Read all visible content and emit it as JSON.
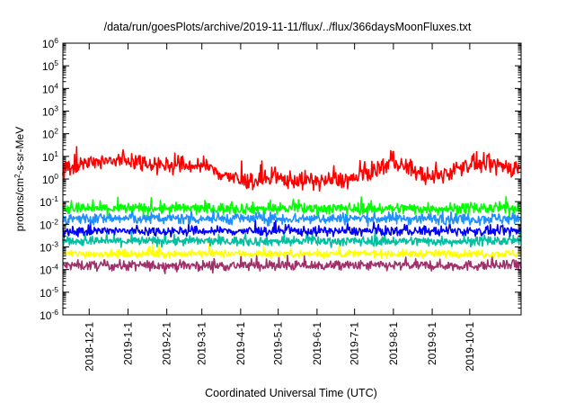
{
  "chart_data": {
    "type": "line",
    "title": "/data/run/goesPlots/archive/2019-11-11/flux/../flux/366daysMoonFluxes.txt",
    "xlabel": "Coordinated Universal Time (UTC)",
    "ylabel": {
      "base": "protons/cm",
      "sup": "2",
      "rest": "-s-sr-MeV"
    },
    "y_scale": "log",
    "ylim": [
      1e-06,
      1000000.0
    ],
    "y_ticks": [
      {
        "base": "10",
        "exp": "-6",
        "value": 1e-06
      },
      {
        "base": "10",
        "exp": "-5",
        "value": 1e-05
      },
      {
        "base": "10",
        "exp": "-4",
        "value": 0.0001
      },
      {
        "base": "10",
        "exp": "-3",
        "value": 0.001
      },
      {
        "base": "10",
        "exp": "-2",
        "value": 0.01
      },
      {
        "base": "10",
        "exp": "-1",
        "value": 0.1
      },
      {
        "base": "10",
        "exp": "0",
        "value": 1
      },
      {
        "base": "10",
        "exp": "1",
        "value": 10
      },
      {
        "base": "10",
        "exp": "2",
        "value": 100
      },
      {
        "base": "10",
        "exp": "3",
        "value": 1000
      },
      {
        "base": "10",
        "exp": "4",
        "value": 10000
      },
      {
        "base": "10",
        "exp": "5",
        "value": 100000
      },
      {
        "base": "10",
        "exp": "6",
        "value": 1000000
      }
    ],
    "xlim": [
      "2018-11-10",
      "2019-11-11"
    ],
    "x_ticks": [
      "2018-12-1",
      "2019-1-1",
      "2019-2-1",
      "2019-3-1",
      "2019-4-1",
      "2019-5-1",
      "2019-6-1",
      "2019-7-1",
      "2019-8-1",
      "2019-9-1",
      "2019-10-1"
    ],
    "grid": false,
    "legend": "none",
    "series": [
      {
        "color": "#ff0000",
        "x": [
          "2018-11-10",
          "2018-12-1",
          "2019-1-1",
          "2019-2-1",
          "2019-3-1",
          "2019-4-1",
          "2019-5-1",
          "2019-6-1",
          "2019-7-1",
          "2019-8-1",
          "2019-9-1",
          "2019-10-1",
          "2019-11-11"
        ],
        "values": [
          3,
          5,
          7,
          4,
          4,
          0.8,
          1,
          0.8,
          1,
          6,
          1,
          5,
          3
        ]
      },
      {
        "color": "#00ff00",
        "x": [
          "2018-11-10",
          "2019-11-11"
        ],
        "values": [
          0.05,
          0.05
        ]
      },
      {
        "color": "#1e90ff",
        "x": [
          "2018-11-10",
          "2019-11-11"
        ],
        "values": [
          0.018,
          0.018
        ]
      },
      {
        "color": "#0000ff",
        "x": [
          "2018-11-10",
          "2019-11-11"
        ],
        "values": [
          0.005,
          0.005
        ]
      },
      {
        "color": "#00c0a0",
        "x": [
          "2018-11-10",
          "2019-11-11"
        ],
        "values": [
          0.0018,
          0.0018
        ]
      },
      {
        "color": "#ffff00",
        "x": [
          "2018-11-10",
          "2019-11-11"
        ],
        "values": [
          0.0005,
          0.0005
        ]
      },
      {
        "color": "#a0306a",
        "x": [
          "2018-11-10",
          "2019-11-11"
        ],
        "values": [
          0.00015,
          0.00015
        ]
      }
    ]
  }
}
